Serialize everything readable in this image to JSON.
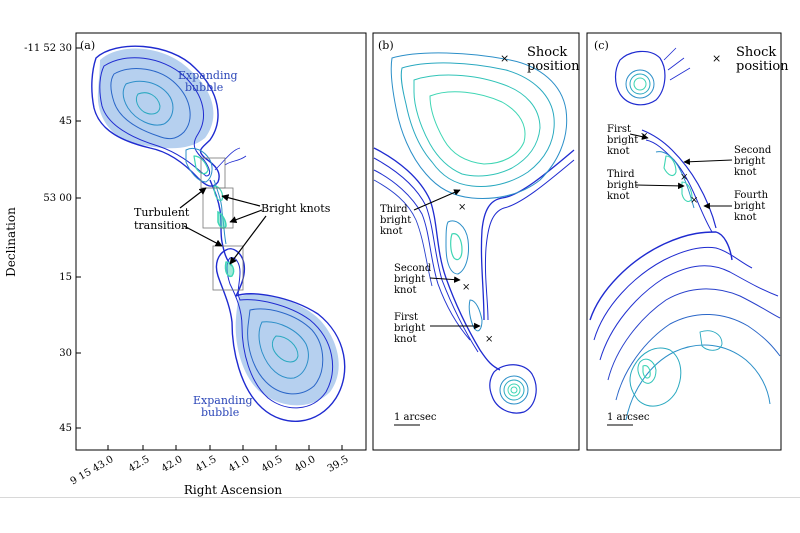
{
  "panels": {
    "a": {
      "label": "(a)",
      "y_ticks": [
        "-11 52 30",
        "45",
        "53 00",
        "15",
        "30",
        "45"
      ],
      "x_ticks": [
        "9 15 43.0",
        "42.5",
        "42.0",
        "41.5",
        "41.0",
        "40.5",
        "40.0",
        "39.5"
      ],
      "xlabel": "Right Ascension",
      "ylabel": "Declination",
      "annotations": {
        "bubble_top": [
          "Expanding",
          "bubble"
        ],
        "bubble_bottom": [
          "Expanding",
          "bubble"
        ],
        "turbulent": [
          "Turbulent",
          "transition"
        ],
        "bright_knots": "Bright knots"
      }
    },
    "b": {
      "label": "(b)",
      "legend": [
        "Shock",
        "position"
      ],
      "legend_marker": "×",
      "knots": [
        [
          "Third",
          "bright",
          "knot"
        ],
        [
          "Second",
          "bright",
          "knot"
        ],
        [
          "First",
          "bright",
          "knot"
        ]
      ],
      "scale": "1 arcsec"
    },
    "c": {
      "label": "(c)",
      "legend": [
        "Shock",
        "position"
      ],
      "legend_marker": "×",
      "knots": [
        [
          "First",
          "bright",
          "knot"
        ],
        [
          "Second",
          "bright",
          "knot"
        ],
        [
          "Third",
          "bright",
          "knot"
        ],
        [
          "Fourth",
          "bright",
          "knot"
        ]
      ],
      "scale": "1 arcsec"
    }
  },
  "colors": {
    "contour_outer": "#1f2bd0",
    "contour_mid": "#2c8fc8",
    "contour_inner": "#3fd6b4",
    "fill": "#a9c8ec",
    "annotation_blue": "#2b46b8"
  }
}
